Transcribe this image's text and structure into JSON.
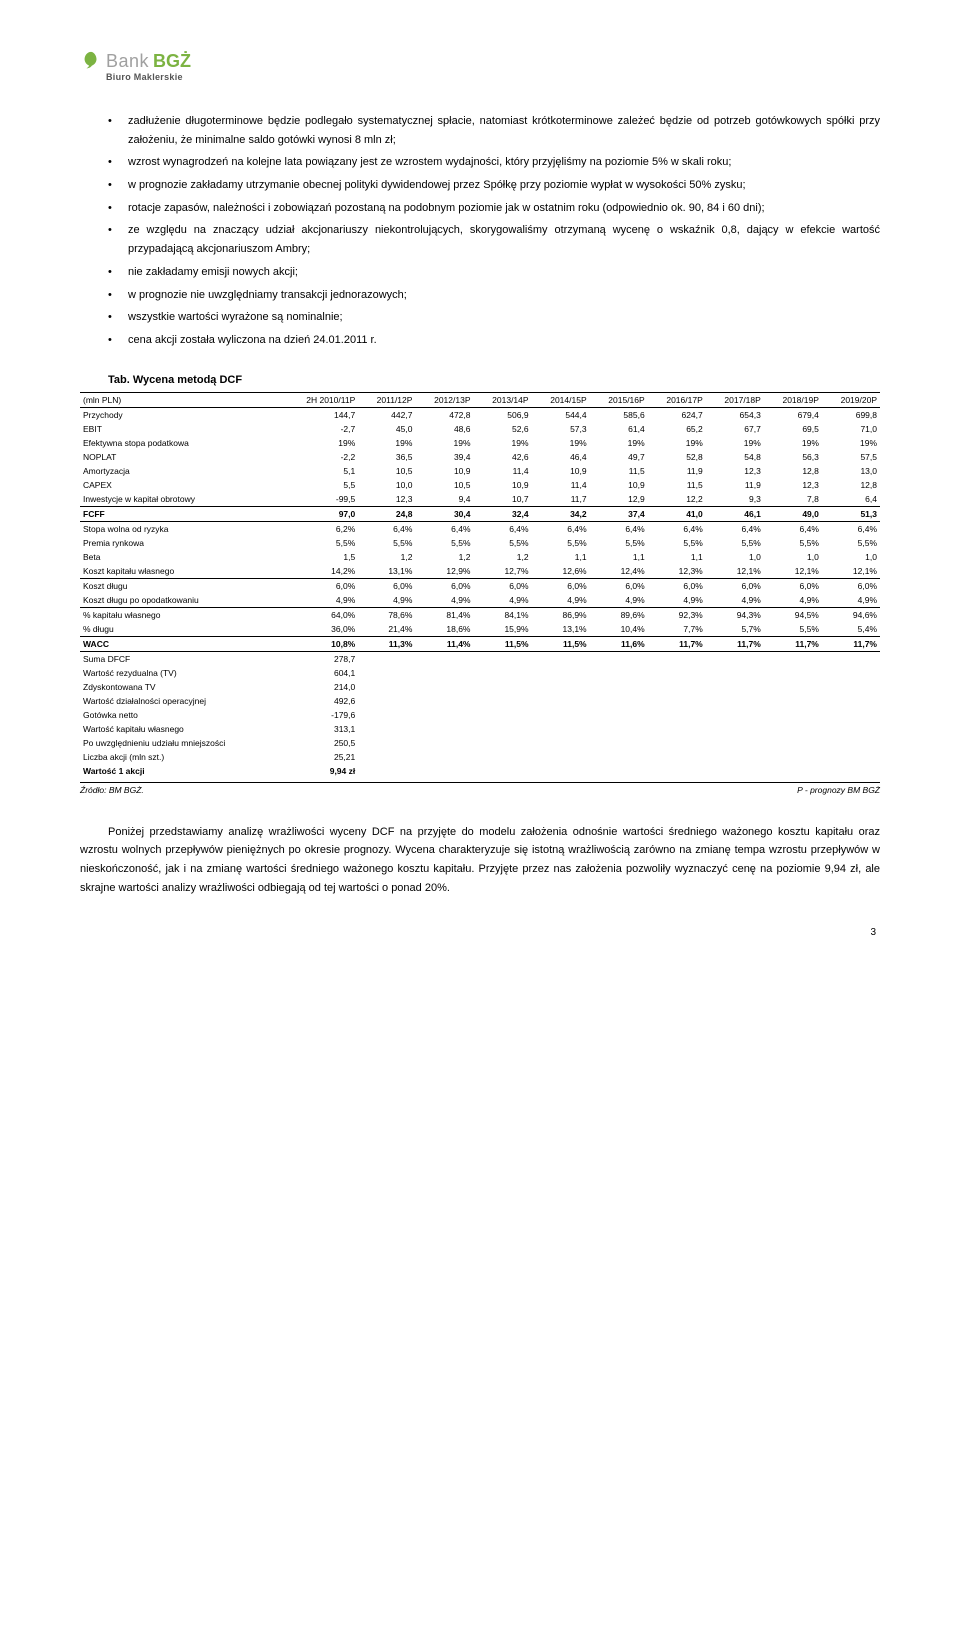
{
  "logo": {
    "bank": "Bank",
    "bgz": "BGŻ",
    "sub": "Biuro Maklerskie"
  },
  "bullets": [
    "zadłużenie długoterminowe będzie podlegało systematycznej spłacie, natomiast krótkoterminowe zależeć będzie od potrzeb gotówkowych spółki przy założeniu, że minimalne saldo gotówki wynosi 8 mln zł;",
    "wzrost wynagrodzeń na kolejne lata powiązany jest ze wzrostem wydajności, który przyjęliśmy na poziomie 5% w skali roku;",
    "w prognozie zakładamy utrzymanie obecnej polityki dywidendowej przez Spółkę przy poziomie wypłat w wysokości 50% zysku;",
    "rotacje zapasów, należności i zobowiązań pozostaną na podobnym poziomie jak w ostatnim roku (odpowiednio ok. 90, 84 i 60 dni);",
    "ze względu na znaczący udział akcjonariuszy niekontrolujących, skorygowaliśmy otrzymaną wycenę o wskaźnik 0,8, dający w efekcie wartość przypadającą akcjonariuszom Ambry;",
    "nie zakładamy emisji nowych akcji;",
    "w prognozie nie uwzględniamy transakcji jednorazowych;",
    "wszystkie wartości wyrażone są nominalnie;",
    "cena akcji została wyliczona na dzień 24.01.2011 r."
  ],
  "tabTitle": "Tab. Wycena metodą DCF",
  "table": {
    "unit": "(mln PLN)",
    "headers": [
      "2H 2010/11P",
      "2011/12P",
      "2012/13P",
      "2013/14P",
      "2014/15P",
      "2015/16P",
      "2016/17P",
      "2017/18P",
      "2018/19P",
      "2019/20P"
    ],
    "block1": [
      {
        "label": "Przychody",
        "vals": [
          "144,7",
          "442,7",
          "472,8",
          "506,9",
          "544,4",
          "585,6",
          "624,7",
          "654,3",
          "679,4",
          "699,8"
        ]
      },
      {
        "label": "EBIT",
        "vals": [
          "-2,7",
          "45,0",
          "48,6",
          "52,6",
          "57,3",
          "61,4",
          "65,2",
          "67,7",
          "69,5",
          "71,0"
        ]
      },
      {
        "label": "Efektywna stopa podatkowa",
        "vals": [
          "19%",
          "19%",
          "19%",
          "19%",
          "19%",
          "19%",
          "19%",
          "19%",
          "19%",
          "19%"
        ]
      },
      {
        "label": "NOPLAT",
        "vals": [
          "-2,2",
          "36,5",
          "39,4",
          "42,6",
          "46,4",
          "49,7",
          "52,8",
          "54,8",
          "56,3",
          "57,5"
        ]
      },
      {
        "label": "Amortyzacja",
        "vals": [
          "5,1",
          "10,5",
          "10,9",
          "11,4",
          "10,9",
          "11,5",
          "11,9",
          "12,3",
          "12,8",
          "13,0"
        ]
      },
      {
        "label": "CAPEX",
        "vals": [
          "5,5",
          "10,0",
          "10,5",
          "10,9",
          "11,4",
          "10,9",
          "11,5",
          "11,9",
          "12,3",
          "12,8"
        ]
      },
      {
        "label": "Inwestycje w kapitał obrotowy",
        "vals": [
          "-99,5",
          "12,3",
          "9,4",
          "10,7",
          "11,7",
          "12,9",
          "12,2",
          "9,3",
          "7,8",
          "6,4"
        ]
      }
    ],
    "fcff": {
      "label": "FCFF",
      "vals": [
        "97,0",
        "24,8",
        "30,4",
        "32,4",
        "34,2",
        "37,4",
        "41,0",
        "46,1",
        "49,0",
        "51,3"
      ]
    },
    "block2": [
      {
        "label": "Stopa wolna od ryzyka",
        "vals": [
          "6,2%",
          "6,4%",
          "6,4%",
          "6,4%",
          "6,4%",
          "6,4%",
          "6,4%",
          "6,4%",
          "6,4%",
          "6,4%"
        ]
      },
      {
        "label": "Premia rynkowa",
        "vals": [
          "5,5%",
          "5,5%",
          "5,5%",
          "5,5%",
          "5,5%",
          "5,5%",
          "5,5%",
          "5,5%",
          "5,5%",
          "5,5%"
        ]
      },
      {
        "label": "Beta",
        "vals": [
          "1,5",
          "1,2",
          "1,2",
          "1,2",
          "1,1",
          "1,1",
          "1,1",
          "1,0",
          "1,0",
          "1,0"
        ]
      },
      {
        "label": "Koszt kapitału własnego",
        "vals": [
          "14,2%",
          "13,1%",
          "12,9%",
          "12,7%",
          "12,6%",
          "12,4%",
          "12,3%",
          "12,1%",
          "12,1%",
          "12,1%"
        ]
      }
    ],
    "block3": [
      {
        "label": "Koszt długu",
        "vals": [
          "6,0%",
          "6,0%",
          "6,0%",
          "6,0%",
          "6,0%",
          "6,0%",
          "6,0%",
          "6,0%",
          "6,0%",
          "6,0%"
        ]
      },
      {
        "label": "Koszt długu po opodatkowaniu",
        "vals": [
          "4,9%",
          "4,9%",
          "4,9%",
          "4,9%",
          "4,9%",
          "4,9%",
          "4,9%",
          "4,9%",
          "4,9%",
          "4,9%"
        ]
      }
    ],
    "block4": [
      {
        "label": "% kapitału własnego",
        "vals": [
          "64,0%",
          "78,6%",
          "81,4%",
          "84,1%",
          "86,9%",
          "89,6%",
          "92,3%",
          "94,3%",
          "94,5%",
          "94,6%"
        ]
      },
      {
        "label": "% długu",
        "vals": [
          "36,0%",
          "21,4%",
          "18,6%",
          "15,9%",
          "13,1%",
          "10,4%",
          "7,7%",
          "5,7%",
          "5,5%",
          "5,4%"
        ]
      }
    ],
    "wacc": {
      "label": "WACC",
      "vals": [
        "10,8%",
        "11,3%",
        "11,4%",
        "11,5%",
        "11,5%",
        "11,6%",
        "11,7%",
        "11,7%",
        "11,7%",
        "11,7%"
      ]
    },
    "summary": [
      {
        "label": "Suma DFCF",
        "val": "278,7"
      },
      {
        "label": "Wartość rezydualna (TV)",
        "val": "604,1"
      },
      {
        "label": "Zdyskontowana TV",
        "val": "214,0"
      },
      {
        "label": "Wartość działalności operacyjnej",
        "val": "492,6"
      },
      {
        "label": "Gotówka netto",
        "val": "-179,6"
      },
      {
        "label": "Wartość kapitału własnego",
        "val": "313,1"
      },
      {
        "label": "Po uwzględnieniu udziału mniejszości",
        "val": "250,5"
      },
      {
        "label": "Liczba akcji (mln szt.)",
        "val": "25,21"
      }
    ],
    "finalLabel": "Wartość 1 akcji",
    "finalVal": "9,94 zł"
  },
  "source": {
    "left": "Źródło: BM BGŻ.",
    "right": "P - prognozy BM BGŻ"
  },
  "para": "Poniżej przedstawiamy analizę wrażliwości wyceny DCF na przyjęte do modelu założenia odnośnie wartości średniego ważonego kosztu kapitału oraz wzrostu wolnych przepływów pieniężnych po okresie prognozy. Wycena charakteryzuje się istotną wrażliwością zarówno na zmianę tempa wzrostu przepływów w nieskończoność, jak i na zmianę wartości średniego ważonego kosztu kapitału. Przyjęte przez nas założenia pozwoliły wyznaczyć cenę na poziomie 9,94 zł, ale skrajne wartości analizy wrażliwości odbiegają od tej wartości o ponad 20%.",
  "pageNum": "3"
}
